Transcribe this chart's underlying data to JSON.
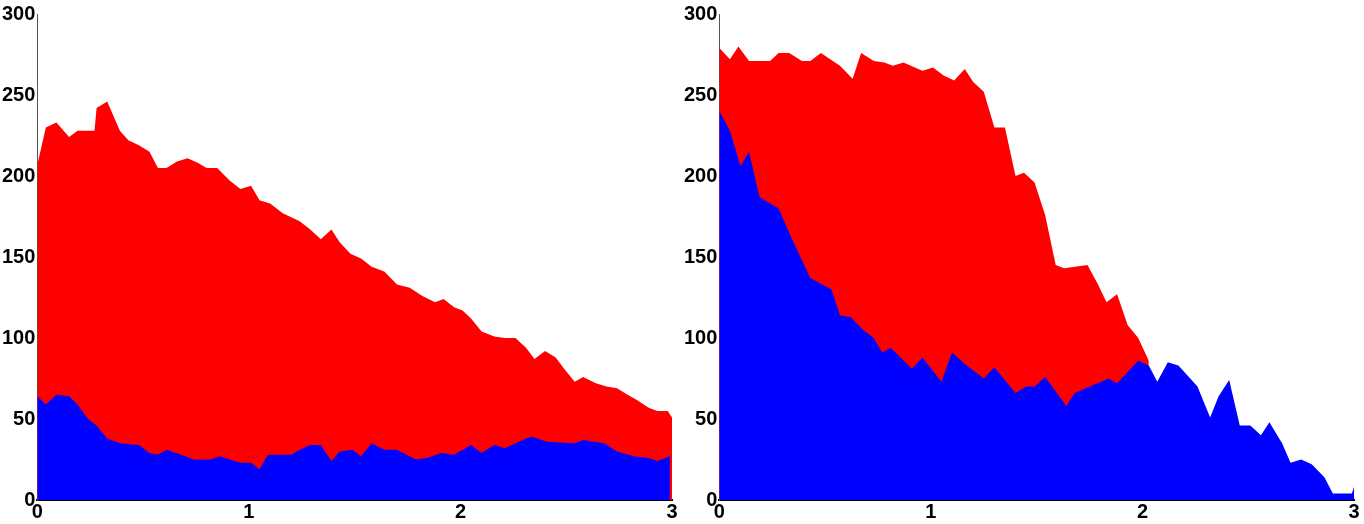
{
  "chart_data": [
    {
      "type": "area",
      "xlim": [
        0,
        3
      ],
      "xticks": [
        0,
        1,
        2,
        3
      ],
      "ylim": [
        0,
        300
      ],
      "yticks": [
        0,
        50,
        100,
        150,
        200,
        250,
        300
      ],
      "grid": false,
      "legend": false,
      "marker": "none",
      "series": [
        {
          "color": "#ff0000",
          "x": [
            0,
            0.04,
            0.09,
            0.15,
            0.19,
            0.27,
            0.28,
            0.33,
            0.39,
            0.43,
            0.48,
            0.53,
            0.57,
            0.61,
            0.66,
            0.71,
            0.76,
            0.8,
            0.85,
            0.91,
            0.96,
            1.01,
            1.05,
            1.1,
            1.16,
            1.24,
            1.29,
            1.34,
            1.39,
            1.43,
            1.48,
            1.53,
            1.58,
            1.64,
            1.7,
            1.76,
            1.82,
            1.88,
            1.92,
            1.97,
            2.01,
            2.05,
            2.1,
            2.16,
            2.21,
            2.26,
            2.31,
            2.35,
            2.4,
            2.45,
            2.49,
            2.54,
            2.58,
            2.64,
            2.69,
            2.74,
            2.79,
            2.83,
            2.89,
            2.93,
            2.98,
            3
          ],
          "values": [
            207,
            230,
            233,
            224,
            228,
            228,
            242,
            246,
            228,
            222,
            219,
            215,
            205,
            205,
            209,
            211,
            208,
            205,
            205,
            197,
            192,
            194,
            185,
            183,
            177,
            172,
            167,
            161,
            167,
            159,
            152,
            149,
            144,
            141,
            133,
            131,
            126,
            122,
            124,
            119,
            117,
            112,
            104,
            101,
            100,
            100,
            94,
            87,
            92,
            88,
            81,
            73,
            76,
            72,
            70,
            69,
            65,
            62,
            57,
            55,
            55,
            51
          ]
        },
        {
          "color": "#0000ff",
          "x": [
            0,
            0.04,
            0.09,
            0.15,
            0.19,
            0.24,
            0.28,
            0.33,
            0.39,
            0.48,
            0.53,
            0.57,
            0.61,
            0.68,
            0.74,
            0.82,
            0.86,
            0.96,
            1.01,
            1.05,
            1.09,
            1.2,
            1.24,
            1.29,
            1.34,
            1.39,
            1.43,
            1.49,
            1.53,
            1.58,
            1.64,
            1.7,
            1.79,
            1.84,
            1.91,
            1.97,
            2.05,
            2.1,
            2.16,
            2.21,
            2.31,
            2.34,
            2.41,
            2.54,
            2.58,
            2.68,
            2.74,
            2.82,
            2.89,
            2.93,
            2.99
          ],
          "values": [
            64,
            59,
            65,
            64,
            59,
            50,
            46,
            38,
            35,
            34,
            29,
            28,
            31,
            28,
            25,
            25,
            27,
            23,
            23,
            19,
            28,
            28,
            31,
            34,
            34,
            24,
            30,
            31,
            27,
            35,
            31,
            31,
            25,
            26,
            29,
            28,
            34,
            29,
            34,
            32,
            38,
            39,
            36,
            35,
            37,
            35,
            30,
            27,
            26,
            24,
            27
          ]
        }
      ]
    },
    {
      "type": "area",
      "xlim": [
        0,
        3
      ],
      "xticks": [
        0,
        1,
        2,
        3
      ],
      "ylim": [
        0,
        300
      ],
      "yticks": [
        0,
        50,
        100,
        150,
        200,
        250,
        300
      ],
      "grid": false,
      "legend": false,
      "marker": "none",
      "series": [
        {
          "color": "#ff0000",
          "x": [
            0,
            0.05,
            0.09,
            0.14,
            0.24,
            0.28,
            0.33,
            0.39,
            0.43,
            0.48,
            0.57,
            0.63,
            0.67,
            0.73,
            0.78,
            0.82,
            0.87,
            0.96,
            1.01,
            1.06,
            1.11,
            1.16,
            1.2,
            1.25,
            1.3,
            1.35,
            1.4,
            1.44,
            1.49,
            1.54,
            1.59,
            1.63,
            1.74,
            1.79,
            1.83,
            1.88,
            1.93,
            1.98,
            2.03
          ],
          "values": [
            279,
            272,
            280,
            271,
            271,
            276,
            276,
            271,
            271,
            276,
            268,
            260,
            276,
            271,
            270,
            268,
            270,
            265,
            267,
            262,
            259,
            266,
            258,
            252,
            230,
            230,
            200,
            202,
            196,
            176,
            145,
            143,
            145,
            133,
            122,
            127,
            108,
            100,
            86
          ]
        },
        {
          "color": "#0000ff",
          "x": [
            0,
            0.05,
            0.1,
            0.14,
            0.19,
            0.28,
            0.34,
            0.43,
            0.53,
            0.57,
            0.62,
            0.68,
            0.73,
            0.77,
            0.81,
            0.91,
            0.96,
            1.05,
            1.1,
            1.16,
            1.25,
            1.3,
            1.4,
            1.45,
            1.49,
            1.54,
            1.64,
            1.68,
            1.84,
            1.88,
            1.98,
            2.03,
            2.07,
            2.12,
            2.17,
            2.26,
            2.32,
            2.36,
            2.41,
            2.46,
            2.51,
            2.56,
            2.6,
            2.66,
            2.7,
            2.75,
            2.8,
            2.86,
            2.9,
            2.99,
            3
          ],
          "values": [
            240,
            228,
            206,
            215,
            187,
            180,
            162,
            137,
            130,
            114,
            113,
            105,
            100,
            91,
            94,
            81,
            88,
            73,
            91,
            84,
            75,
            82,
            66,
            70,
            70,
            76,
            58,
            66,
            75,
            72,
            86,
            83,
            73,
            85,
            83,
            70,
            51,
            64,
            74,
            46,
            46,
            40,
            48,
            35,
            23,
            25,
            22,
            14,
            4,
            4,
            8
          ]
        }
      ]
    }
  ]
}
